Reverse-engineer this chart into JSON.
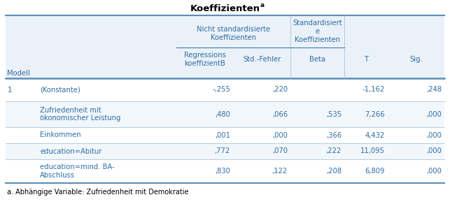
{
  "title_base": "Koeffizienten",
  "title_super": "a",
  "footnote": "a. Abhängige Variable: Zufriedenheit mit Demokratie",
  "col_color": "#2E6DA4",
  "title_color": "#000000",
  "footnote_color": "#000000",
  "header_bg": "#EAF1F8",
  "row_bg_light": "#F2F7FB",
  "row_bg_white": "#FFFFFF",
  "border_dark": "#5B8DB8",
  "border_light": "#A8C4DC",
  "fs_title": 9.5,
  "fs_header": 7.2,
  "fs_data": 7.2,
  "fs_footnote": 7.0,
  "col_header_lines": [
    "Nicht standardisierte\nKoeffizienten",
    "Standardisiert\ne\nKoeffizienten"
  ],
  "col_subheaders": [
    "Regressions\nkoeffizientB",
    "Std.-Fehler",
    "Beta",
    "T",
    "Sig."
  ],
  "modell_label": "Modell",
  "rows": [
    {
      "model": "1",
      "label": "(Konstante)",
      "B": "-,255",
      "std": ",220",
      "beta": "",
      "T": "-1,162",
      "sig": ",248"
    },
    {
      "model": "",
      "label": "Zufriedenheit mit\nökonomischer Leistung",
      "B": ",480",
      "std": ",066",
      "beta": ",535",
      "T": "7,266",
      "sig": ",000"
    },
    {
      "model": "",
      "label": "Einkommen",
      "B": ",001",
      "std": ",000",
      "beta": ",366",
      "T": "4,432",
      "sig": ",000"
    },
    {
      "model": "",
      "label": "education=Abitur",
      "B": ",772",
      "std": ",070",
      "beta": ",222",
      "T": "11,095",
      "sig": ",000"
    },
    {
      "model": "",
      "label": "education=mind. BA-\nAbschluss",
      "B": ",830",
      "std": ",122",
      "beta": ",208",
      "T": "6,809",
      "sig": ",000"
    }
  ]
}
